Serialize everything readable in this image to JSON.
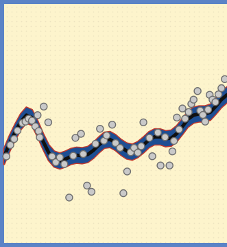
{
  "colors": {
    "frame": "#5b83c6",
    "background": "#fdf4cc",
    "background_dots": "#ece3bf",
    "band_fill": "#1d4e93",
    "band_edge": "#c23a2e",
    "mean_line": "#111111",
    "point_fill": "#c9c9c9",
    "point_stroke": "#6e6e6e"
  },
  "chart_data": {
    "type": "scatter",
    "title": "",
    "xlabel": "",
    "ylabel": "",
    "xlim": [
      0,
      1
    ],
    "ylim": [
      0,
      1
    ],
    "grid": false,
    "legend": "none",
    "mean_curve": [
      [
        0.0,
        0.362
      ],
      [
        0.025,
        0.417
      ],
      [
        0.05,
        0.465
      ],
      [
        0.075,
        0.508
      ],
      [
        0.1,
        0.535
      ],
      [
        0.125,
        0.525
      ],
      [
        0.15,
        0.478
      ],
      [
        0.175,
        0.425
      ],
      [
        0.2,
        0.378
      ],
      [
        0.225,
        0.351
      ],
      [
        0.25,
        0.343
      ],
      [
        0.275,
        0.351
      ],
      [
        0.3,
        0.362
      ],
      [
        0.325,
        0.367
      ],
      [
        0.35,
        0.365
      ],
      [
        0.375,
        0.37
      ],
      [
        0.4,
        0.387
      ],
      [
        0.425,
        0.41
      ],
      [
        0.45,
        0.43
      ],
      [
        0.475,
        0.433
      ],
      [
        0.5,
        0.42
      ],
      [
        0.525,
        0.4
      ],
      [
        0.55,
        0.385
      ],
      [
        0.575,
        0.38
      ],
      [
        0.6,
        0.391
      ],
      [
        0.625,
        0.41
      ],
      [
        0.65,
        0.432
      ],
      [
        0.675,
        0.444
      ],
      [
        0.7,
        0.444
      ],
      [
        0.725,
        0.436
      ],
      [
        0.75,
        0.439
      ],
      [
        0.775,
        0.458
      ],
      [
        0.8,
        0.487
      ],
      [
        0.825,
        0.518
      ],
      [
        0.85,
        0.535
      ],
      [
        0.875,
        0.54
      ],
      [
        0.9,
        0.54
      ],
      [
        0.925,
        0.547
      ],
      [
        0.95,
        0.572
      ],
      [
        0.975,
        0.6
      ],
      [
        1.0,
        0.62
      ]
    ],
    "band_halfwidth": 0.032,
    "points": [
      [
        0.01,
        0.362
      ],
      [
        0.028,
        0.41
      ],
      [
        0.045,
        0.435
      ],
      [
        0.06,
        0.47
      ],
      [
        0.082,
        0.502
      ],
      [
        0.096,
        0.508
      ],
      [
        0.11,
        0.52
      ],
      [
        0.125,
        0.512
      ],
      [
        0.14,
        0.488
      ],
      [
        0.155,
        0.468
      ],
      [
        0.15,
        0.535
      ],
      [
        0.178,
        0.571
      ],
      [
        0.16,
        0.442
      ],
      [
        0.198,
        0.505
      ],
      [
        0.215,
        0.362
      ],
      [
        0.232,
        0.338
      ],
      [
        0.25,
        0.358
      ],
      [
        0.27,
        0.33
      ],
      [
        0.292,
        0.19
      ],
      [
        0.31,
        0.365
      ],
      [
        0.32,
        0.44
      ],
      [
        0.345,
        0.457
      ],
      [
        0.355,
        0.372
      ],
      [
        0.372,
        0.24
      ],
      [
        0.392,
        0.214
      ],
      [
        0.41,
        0.415
      ],
      [
        0.43,
        0.478
      ],
      [
        0.448,
        0.428
      ],
      [
        0.46,
        0.45
      ],
      [
        0.485,
        0.495
      ],
      [
        0.5,
        0.418
      ],
      [
        0.52,
        0.398
      ],
      [
        0.535,
        0.208
      ],
      [
        0.552,
        0.299
      ],
      [
        0.568,
        0.38
      ],
      [
        0.583,
        0.398
      ],
      [
        0.6,
        0.378
      ],
      [
        0.615,
        0.405
      ],
      [
        0.625,
        0.505
      ],
      [
        0.652,
        0.44
      ],
      [
        0.665,
        0.363
      ],
      [
        0.69,
        0.462
      ],
      [
        0.702,
        0.324
      ],
      [
        0.722,
        0.443
      ],
      [
        0.742,
        0.324
      ],
      [
        0.755,
        0.383
      ],
      [
        0.762,
        0.427
      ],
      [
        0.775,
        0.525
      ],
      [
        0.785,
        0.475
      ],
      [
        0.8,
        0.563
      ],
      [
        0.812,
        0.52
      ],
      [
        0.828,
        0.548
      ],
      [
        0.84,
        0.582
      ],
      [
        0.85,
        0.6
      ],
      [
        0.868,
        0.636
      ],
      [
        0.88,
        0.554
      ],
      [
        0.892,
        0.536
      ],
      [
        0.902,
        0.508
      ],
      [
        0.915,
        0.558
      ],
      [
        0.922,
        0.62
      ],
      [
        0.935,
        0.6
      ],
      [
        0.948,
        0.59
      ],
      [
        0.962,
        0.622
      ],
      [
        0.975,
        0.648
      ],
      [
        0.99,
        0.686
      ]
    ]
  }
}
